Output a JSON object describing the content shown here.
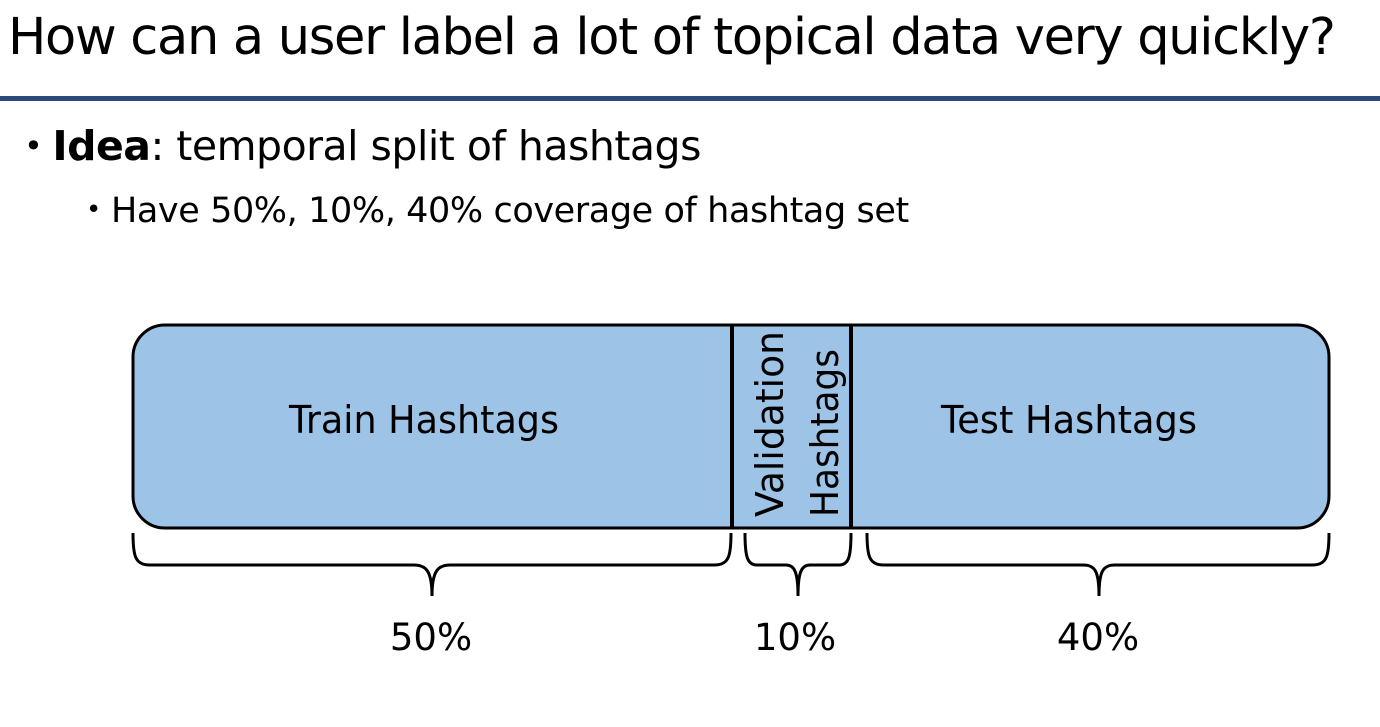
{
  "slide": {
    "title": "How can a user label a lot of topical data very quickly?",
    "bullets": [
      {
        "bold": "Idea",
        "text": ": temporal split of hashtags",
        "sub": [
          "Have 50%, 10%, 40% coverage of hashtag set"
        ]
      }
    ]
  },
  "diagram": {
    "segments": [
      {
        "label": "Train Hashtags",
        "percent": 50,
        "percent_label": "50%"
      },
      {
        "label_lines": [
          "Validation",
          "Hashtags"
        ],
        "percent": 10,
        "percent_label": "10%"
      },
      {
        "label": "Test Hashtags",
        "percent": 40,
        "percent_label": "40%"
      }
    ]
  },
  "colors": {
    "title_rule": "#2e4a7d",
    "segment_fill": "#9dc3e6",
    "outline": "#000000",
    "text": "#000000"
  }
}
